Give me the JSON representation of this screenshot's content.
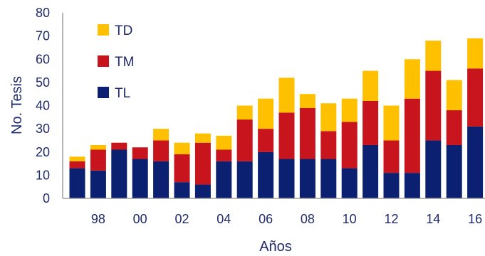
{
  "chart_data": {
    "type": "bar",
    "stacked": true,
    "xlabel": "Años",
    "ylabel": "No. Tesis",
    "ylim": [
      0,
      80
    ],
    "yticks": [
      0,
      10,
      20,
      30,
      40,
      50,
      60,
      70,
      80
    ],
    "categories": [
      "97",
      "98",
      "99",
      "00",
      "01",
      "02",
      "03",
      "04",
      "05",
      "06",
      "07",
      "08",
      "09",
      "10",
      "11",
      "12",
      "13",
      "14",
      "15",
      "16"
    ],
    "x_tick_labels": [
      "",
      "98",
      "",
      "00",
      "",
      "02",
      "",
      "04",
      "",
      "06",
      "",
      "08",
      "",
      "10",
      "",
      "12",
      "",
      "14",
      "",
      "16"
    ],
    "legend_position": "top-left",
    "grid": false,
    "series": [
      {
        "name": "TL",
        "color": "#0b2070",
        "values": [
          13,
          12,
          21,
          17,
          16,
          7,
          6,
          16,
          16,
          20,
          17,
          17,
          17,
          13,
          23,
          11,
          11,
          25,
          23,
          31
        ]
      },
      {
        "name": "TM",
        "color": "#c8141c",
        "values": [
          3,
          9,
          3,
          5,
          9,
          12,
          18,
          5,
          18,
          10,
          20,
          22,
          12,
          20,
          19,
          14,
          32,
          30,
          15,
          25
        ]
      },
      {
        "name": "TD",
        "color": "#ffc000",
        "values": [
          2,
          2,
          0,
          0,
          5,
          5,
          4,
          6,
          6,
          13,
          15,
          6,
          12,
          10,
          13,
          15,
          17,
          13,
          13,
          13
        ]
      }
    ],
    "legend_order": [
      "TD",
      "TM",
      "TL"
    ],
    "axis_color": "#9e9e9e",
    "text_color": "#1f2a6b"
  }
}
